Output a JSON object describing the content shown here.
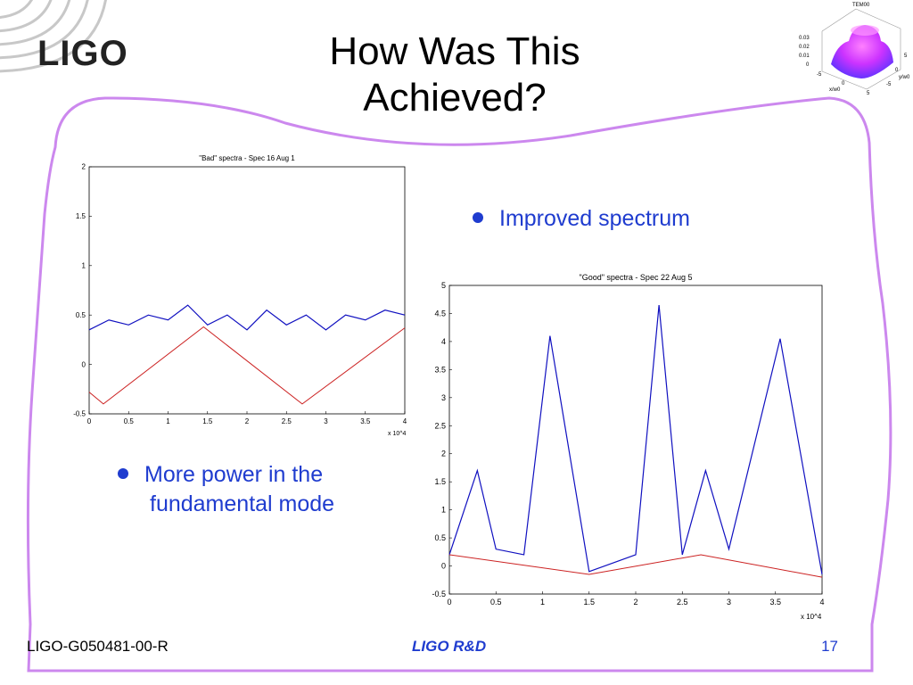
{
  "logo": {
    "text": "LIGO"
  },
  "title": {
    "line1": "How Was This",
    "line2": "Achieved?"
  },
  "bullets": {
    "improved": "Improved spectrum",
    "more_power_line1": "More power in the",
    "more_power_line2": "fundamental mode"
  },
  "footer": {
    "doc_id": "LIGO-G050481-00-R",
    "center": "LIGO R&D",
    "page_number": "17"
  },
  "tem_inset": {
    "title": "TEM00",
    "z_ticks": [
      "0.03",
      "0.02",
      "0.01",
      "0"
    ],
    "x_ticks": [
      "-5",
      "0",
      "5"
    ],
    "y_ticks": [
      "5",
      "0",
      "-5"
    ],
    "x_label": "x/w0",
    "y_label": "y/w0"
  },
  "colors": {
    "accent": "#1f3ccf",
    "border": "#cc88ee",
    "spectrum": "#1010c0",
    "fit_line": "#cc2222"
  },
  "chart_data": [
    {
      "type": "line",
      "title": "\"Bad\" spectra - Spec 16 Aug 1",
      "xlim": [
        0,
        4
      ],
      "ylim": [
        -0.5,
        2
      ],
      "x_ticks": [
        "0",
        "0.5",
        "1",
        "1.5",
        "2",
        "2.5",
        "3",
        "3.5",
        "4"
      ],
      "y_ticks": [
        "-0.5",
        "0",
        "0.5",
        "1",
        "1.5",
        "2"
      ],
      "x_multiplier": "x 10^4",
      "series": [
        {
          "values_x": [
            0,
            0.25,
            0.5,
            0.75,
            1.0,
            1.25,
            1.5,
            1.75,
            2.0,
            2.25,
            2.5,
            2.75,
            3.0,
            3.25,
            3.5,
            3.75,
            4.0
          ],
          "values_y": [
            0.35,
            0.45,
            0.4,
            0.5,
            0.45,
            0.6,
            0.4,
            0.5,
            0.35,
            0.55,
            0.4,
            0.5,
            0.35,
            0.5,
            0.45,
            0.55,
            0.5
          ]
        },
        {
          "values_x": [
            0,
            0.18,
            1.45,
            2.7,
            4.0
          ],
          "values_y": [
            -0.28,
            -0.4,
            0.38,
            -0.4,
            0.37
          ]
        }
      ]
    },
    {
      "type": "line",
      "title": "\"Good\" spectra - Spec 22 Aug 5",
      "xlim": [
        0,
        4
      ],
      "ylim": [
        -0.5,
        5
      ],
      "x_ticks": [
        "0",
        "0.5",
        "1",
        "1.5",
        "2",
        "2.5",
        "3",
        "3.5",
        "4"
      ],
      "y_ticks": [
        "-0.5",
        "0",
        "0.5",
        "1",
        "1.5",
        "2",
        "2.5",
        "3",
        "3.5",
        "4",
        "4.5",
        "5"
      ],
      "x_multiplier": "x 10^4",
      "series": [
        {
          "values_x": [
            0,
            0.3,
            0.5,
            0.8,
            1.08,
            1.5,
            2.0,
            2.25,
            2.5,
            2.75,
            3.0,
            3.55,
            4.0
          ],
          "values_y": [
            0.2,
            1.7,
            0.3,
            0.2,
            4.1,
            -0.1,
            0.2,
            4.65,
            0.2,
            1.7,
            0.3,
            4.05,
            -0.15
          ]
        },
        {
          "values_x": [
            0,
            1.5,
            2.7,
            4.0
          ],
          "values_y": [
            0.2,
            -0.15,
            0.2,
            -0.2
          ]
        }
      ]
    }
  ]
}
